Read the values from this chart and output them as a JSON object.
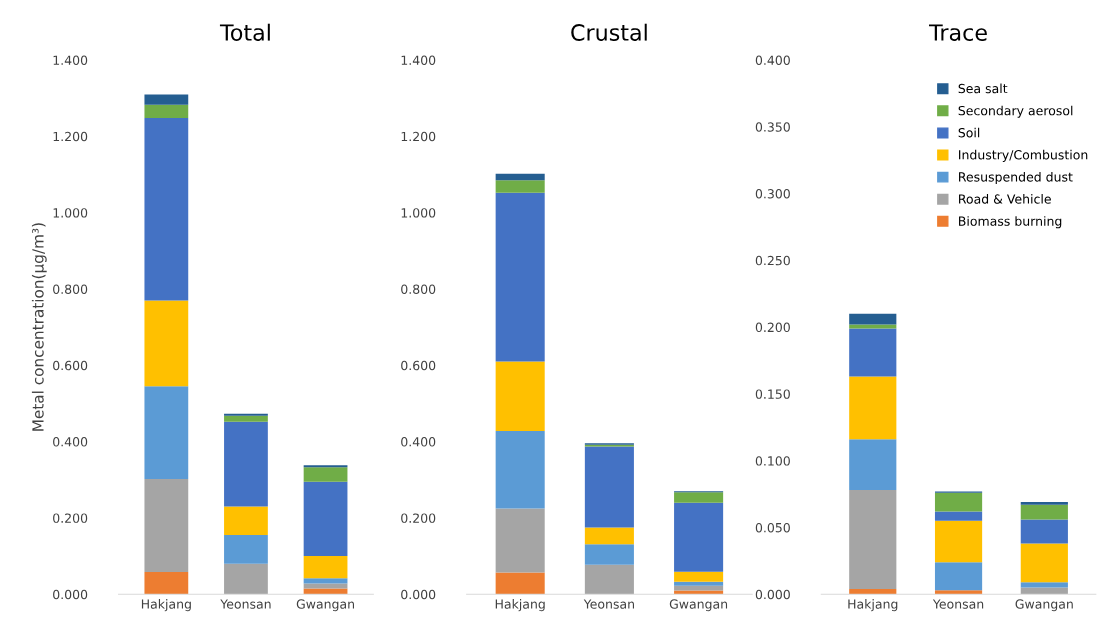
{
  "chart_data": [
    {
      "type": "bar",
      "title": "Total",
      "ylabel": "Metal concentration(μg/m³)",
      "stacked": true,
      "categories": [
        "Hakjang",
        "Yeonsan",
        "Gwangan"
      ],
      "ylim": [
        0,
        1.4
      ],
      "yticks": [
        {
          "value": 0,
          "label": "0.000"
        },
        {
          "value": 0.2,
          "label": "0.200"
        },
        {
          "value": 0.4,
          "label": "0.400"
        },
        {
          "value": 0.6,
          "label": "0.600"
        },
        {
          "value": 0.8,
          "label": "0.800"
        },
        {
          "value": 1.0,
          "label": "1.000"
        },
        {
          "value": 1.2,
          "label": "1.200"
        },
        {
          "value": 1.4,
          "label": "1.400"
        }
      ],
      "grid": false,
      "legend": false,
      "series": [
        {
          "color": "#ed7d31",
          "values": [
            0.058,
            0,
            0.015
          ]
        },
        {
          "color": "#a5a5a5",
          "values": [
            0.244,
            0.08,
            0.013
          ]
        },
        {
          "color": "#5b9bd5",
          "values": [
            0.243,
            0.075,
            0.014
          ]
        },
        {
          "color": "#ffc000",
          "values": [
            0.225,
            0.075,
            0.058
          ]
        },
        {
          "color": "#4472c4",
          "values": [
            0.478,
            0.222,
            0.195
          ]
        },
        {
          "color": "#70ad47",
          "values": [
            0.035,
            0.016,
            0.038
          ]
        },
        {
          "color": "#255e91",
          "values": [
            0.027,
            0.005,
            0.005
          ]
        }
      ]
    },
    {
      "type": "bar",
      "title": "Crustal",
      "stacked": true,
      "categories": [
        "Hakjang",
        "Yeonsan",
        "Gwangan"
      ],
      "ylim": [
        0,
        1.4
      ],
      "yticks": [
        {
          "value": 0,
          "label": "0.000"
        },
        {
          "value": 0.2,
          "label": "0.200"
        },
        {
          "value": 0.4,
          "label": "0.400"
        },
        {
          "value": 0.6,
          "label": "0.600"
        },
        {
          "value": 0.8,
          "label": "0.800"
        },
        {
          "value": 1.0,
          "label": "1.000"
        },
        {
          "value": 1.2,
          "label": "1.200"
        },
        {
          "value": 1.4,
          "label": "1.400"
        }
      ],
      "grid": false,
      "legend": false,
      "series": [
        {
          "color": "#ed7d31",
          "values": [
            0.057,
            0,
            0.01
          ]
        },
        {
          "color": "#a5a5a5",
          "values": [
            0.168,
            0.077,
            0.012
          ]
        },
        {
          "color": "#5b9bd5",
          "values": [
            0.203,
            0.054,
            0.011
          ]
        },
        {
          "color": "#ffc000",
          "values": [
            0.182,
            0.044,
            0.026
          ]
        },
        {
          "color": "#4472c4",
          "values": [
            0.442,
            0.212,
            0.181
          ]
        },
        {
          "color": "#70ad47",
          "values": [
            0.033,
            0.005,
            0.027
          ]
        },
        {
          "color": "#255e91",
          "values": [
            0.017,
            0.004,
            0.003
          ]
        }
      ]
    },
    {
      "type": "bar",
      "title": "Trace",
      "stacked": true,
      "categories": [
        "Hakjang",
        "Yeonsan",
        "Gwangan"
      ],
      "ylim": [
        0,
        0.4
      ],
      "yticks": [
        {
          "value": 0,
          "label": "0.000"
        },
        {
          "value": 0.05,
          "label": "0.050"
        },
        {
          "value": 0.1,
          "label": "0.100"
        },
        {
          "value": 0.15,
          "label": "0.150"
        },
        {
          "value": 0.2,
          "label": "0.200"
        },
        {
          "value": 0.25,
          "label": "0.250"
        },
        {
          "value": 0.3,
          "label": "0.300"
        },
        {
          "value": 0.35,
          "label": "0.350"
        },
        {
          "value": 0.4,
          "label": "0.400"
        }
      ],
      "grid": false,
      "legend": "top right",
      "series": [
        {
          "name": "Biomass burning",
          "color": "#ed7d31",
          "values": [
            0.004,
            0.003,
            0
          ]
        },
        {
          "name": "Road & Vehicle",
          "color": "#a5a5a5",
          "values": [
            0.074,
            null,
            0.005
          ]
        },
        {
          "name": "Resuspended dust",
          "color": "#5b9bd5",
          "values": [
            0.038,
            0.021,
            0.004
          ]
        },
        {
          "name": "Industry/Combustion",
          "color": "#ffc000",
          "values": [
            0.047,
            0.031,
            0.029
          ]
        },
        {
          "name": "Soil",
          "color": "#4472c4",
          "values": [
            0.036,
            0.007,
            0.018
          ]
        },
        {
          "name": "Secondary aerosol",
          "color": "#70ad47",
          "values": [
            0.003,
            0.014,
            0.011
          ]
        },
        {
          "name": "Sea salt",
          "color": "#255e91",
          "values": [
            0.008,
            0.001,
            0.002
          ]
        }
      ]
    }
  ]
}
